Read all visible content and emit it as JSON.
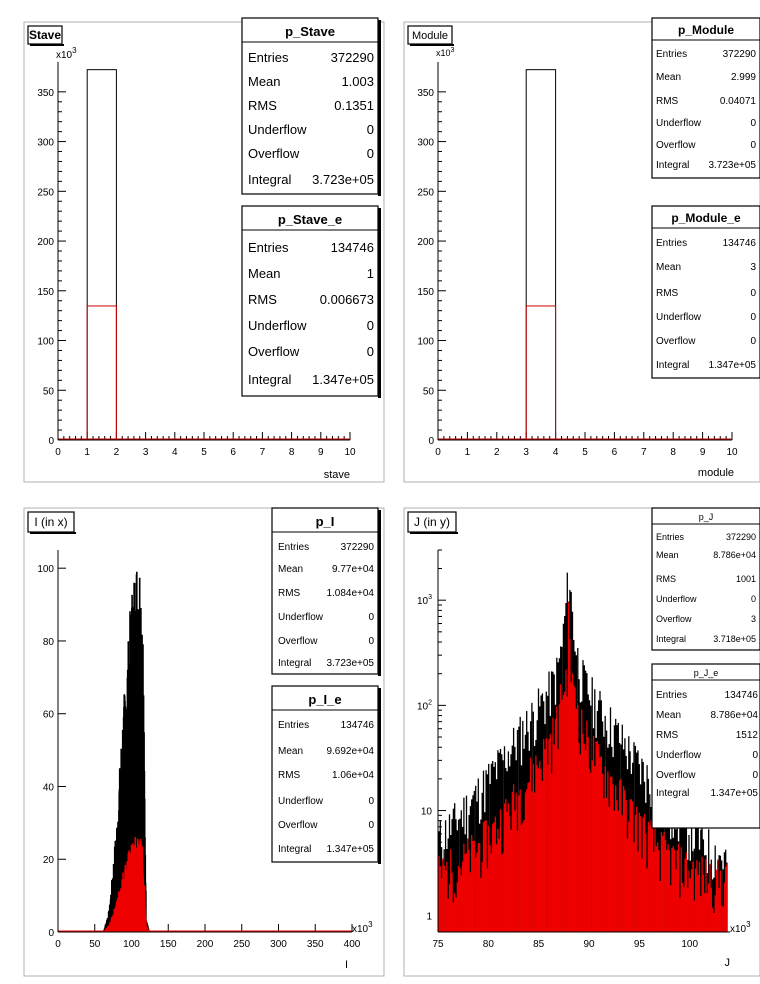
{
  "chart_data": [
    {
      "type": "bar",
      "title": "Stave",
      "xlabel": "stave",
      "xlim": [
        0,
        10
      ],
      "ylim": [
        0,
        380000
      ],
      "y_multiplier_label": "x10",
      "y_multiplier_exp": "3",
      "x_ticks": [
        "0",
        "1",
        "2",
        "3",
        "4",
        "5",
        "6",
        "7",
        "8",
        "9",
        "10"
      ],
      "y_ticks": [
        "0",
        "50",
        "100",
        "150",
        "200",
        "250",
        "300",
        "350"
      ],
      "series": [
        {
          "name": "p_Stave",
          "color": "#000000",
          "bins": [
            {
              "x0": 1,
              "x1": 2,
              "value": 372290
            }
          ]
        },
        {
          "name": "p_Stave_e",
          "color": "#cc0000",
          "bins": [
            {
              "x0": 1,
              "x1": 2,
              "value": 134746
            }
          ]
        }
      ],
      "stats_boxes": [
        {
          "title": "p_Stave",
          "rows": [
            [
              "Entries",
              "372290"
            ],
            [
              "Mean",
              "1.003"
            ],
            [
              "RMS",
              "0.1351"
            ],
            [
              "Underflow",
              "0"
            ],
            [
              "Overflow",
              "0"
            ],
            [
              "Integral",
              "3.723e+05"
            ]
          ]
        },
        {
          "title": "p_Stave_e",
          "rows": [
            [
              "Entries",
              "134746"
            ],
            [
              "Mean",
              "1"
            ],
            [
              "RMS",
              "0.006673"
            ],
            [
              "Underflow",
              "0"
            ],
            [
              "Overflow",
              "0"
            ],
            [
              "Integral",
              "1.347e+05"
            ]
          ]
        }
      ]
    },
    {
      "type": "bar",
      "title": "Module",
      "xlabel": "module",
      "xlim": [
        0,
        10
      ],
      "ylim": [
        0,
        380000
      ],
      "y_multiplier_label": "x10",
      "y_multiplier_exp": "3",
      "x_ticks": [
        "0",
        "1",
        "2",
        "3",
        "4",
        "5",
        "6",
        "7",
        "8",
        "9",
        "10"
      ],
      "y_ticks": [
        "0",
        "50",
        "100",
        "150",
        "200",
        "250",
        "300",
        "350"
      ],
      "series": [
        {
          "name": "p_Module",
          "color": "#000000",
          "bins": [
            {
              "x0": 3,
              "x1": 4,
              "value": 372290
            }
          ]
        },
        {
          "name": "p_Module_e",
          "color": "#cc0000",
          "bins": [
            {
              "x0": 3,
              "x1": 4,
              "value": 134746
            }
          ]
        }
      ],
      "stats_boxes": [
        {
          "title": "p_Module",
          "rows": [
            [
              "Entries",
              "372290"
            ],
            [
              "Mean",
              "2.999"
            ],
            [
              "RMS",
              "0.04071"
            ],
            [
              "Underflow",
              "0"
            ],
            [
              "Overflow",
              "0"
            ],
            [
              "Integral",
              "3.723e+05"
            ]
          ]
        },
        {
          "title": "p_Module_e",
          "rows": [
            [
              "Entries",
              "134746"
            ],
            [
              "Mean",
              "3"
            ],
            [
              "RMS",
              "0"
            ],
            [
              "Underflow",
              "0"
            ],
            [
              "Overflow",
              "0"
            ],
            [
              "Integral",
              "1.347e+05"
            ]
          ]
        }
      ]
    },
    {
      "type": "bar",
      "title": "I (in x)",
      "xlabel": "I",
      "xlim": [
        0,
        400000
      ],
      "ylim": [
        0,
        105
      ],
      "x_multiplier_label": "x10",
      "x_multiplier_exp": "3",
      "x_ticks": [
        "0",
        "50",
        "100",
        "150",
        "200",
        "250",
        "300",
        "350",
        "400"
      ],
      "y_ticks": [
        "0",
        "20",
        "40",
        "60",
        "80",
        "100"
      ],
      "series": [
        {
          "name": "p_I",
          "color": "#000000",
          "profile": {
            "centers": [
              70000,
              80000,
              88000,
              95000,
              100000,
              105000,
              110000,
              115000,
              120000
            ],
            "values": [
              6,
              28,
              55,
              72,
              86,
              93,
              97,
              88,
              4
            ]
          }
        },
        {
          "name": "p_I_e",
          "color": "#ee0000",
          "profile": {
            "centers": [
              70000,
              80000,
              88000,
              95000,
              100000,
              105000,
              110000,
              115000,
              120000
            ],
            "values": [
              2,
              8,
              15,
              20,
              22,
              24,
              25,
              22,
              2
            ]
          }
        }
      ],
      "stats_boxes": [
        {
          "title": "p_I",
          "rows": [
            [
              "Entries",
              "372290"
            ],
            [
              "Mean",
              "9.77e+04"
            ],
            [
              "RMS",
              "1.084e+04"
            ],
            [
              "Underflow",
              "0"
            ],
            [
              "Overflow",
              "0"
            ],
            [
              "Integral",
              "3.723e+05"
            ]
          ]
        },
        {
          "title": "p_I_e",
          "rows": [
            [
              "Entries",
              "134746"
            ],
            [
              "Mean",
              "9.692e+04"
            ],
            [
              "RMS",
              "1.06e+04"
            ],
            [
              "Underflow",
              "0"
            ],
            [
              "Overflow",
              "0"
            ],
            [
              "Integral",
              "1.347e+05"
            ]
          ]
        }
      ]
    },
    {
      "type": "bar",
      "title": "J (in y)",
      "xlabel": "J",
      "xlim": [
        75000,
        104000
      ],
      "ylim": [
        0.7,
        3000
      ],
      "log_y": true,
      "x_multiplier_label": "x10",
      "x_multiplier_exp": "3",
      "x_ticks": [
        "75",
        "80",
        "85",
        "90",
        "95",
        "100"
      ],
      "y_tick_labels": [
        {
          "v": 1,
          "base": "1",
          "exp": ""
        },
        {
          "v": 10,
          "base": "10",
          "exp": ""
        },
        {
          "v": 100,
          "base": "10",
          "exp": "2"
        },
        {
          "v": 1000,
          "base": "10",
          "exp": "3"
        }
      ],
      "series": [
        {
          "name": "p_J",
          "color": "#000000",
          "peak": {
            "center": 88000,
            "value": 1700,
            "core_width": 300,
            "tail_width": 3000,
            "background": 2
          }
        },
        {
          "name": "p_J_e",
          "color": "#ee0000",
          "peak": {
            "center": 88000,
            "value": 600,
            "core_width": 300,
            "tail_width": 2500,
            "background": 2
          }
        }
      ],
      "stats_boxes": [
        {
          "title": "p_J",
          "rows": [
            [
              "Entries",
              "372290"
            ],
            [
              "Mean",
              "8.786e+04"
            ],
            [
              "RMS",
              "1001"
            ],
            [
              "Underflow",
              "0"
            ],
            [
              "Overflow",
              "3"
            ],
            [
              "Integral",
              "3.718e+05"
            ]
          ]
        },
        {
          "title": "p_J_e",
          "rows": [
            [
              "Entries",
              "134746"
            ],
            [
              "Mean",
              "8.786e+04"
            ],
            [
              "RMS",
              "1512"
            ],
            [
              "Underflow",
              "0"
            ],
            [
              "Overflow",
              "0"
            ],
            [
              "Integral",
              "1.347e+05"
            ]
          ]
        }
      ]
    }
  ]
}
